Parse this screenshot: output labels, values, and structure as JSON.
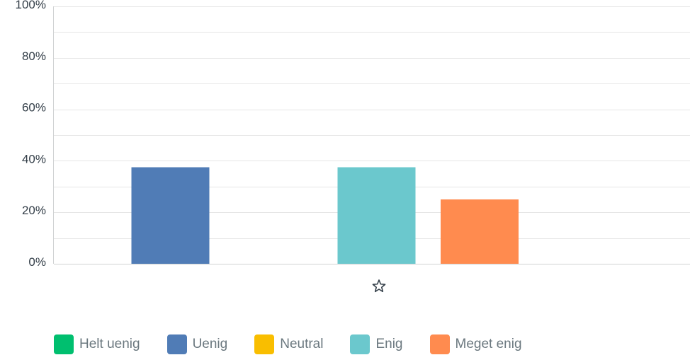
{
  "chart_data": {
    "type": "bar",
    "categories": [
      "star-icon"
    ],
    "ylim": [
      0,
      100
    ],
    "y_ticks": [
      "0%",
      "20%",
      "40%",
      "60%",
      "80%",
      "100%"
    ],
    "grid": true,
    "legend_position": "bottom",
    "series": [
      {
        "name": "Helt uenig",
        "color": "#00bf6f",
        "values": [
          0
        ]
      },
      {
        "name": "Uenig",
        "color": "#507cb6",
        "values": [
          37.5
        ]
      },
      {
        "name": "Neutral",
        "color": "#f9be00",
        "values": [
          0
        ]
      },
      {
        "name": "Enig",
        "color": "#6bc8cd",
        "values": [
          37.5
        ]
      },
      {
        "name": "Meget enig",
        "color": "#ff8b4f",
        "values": [
          25
        ]
      }
    ]
  }
}
